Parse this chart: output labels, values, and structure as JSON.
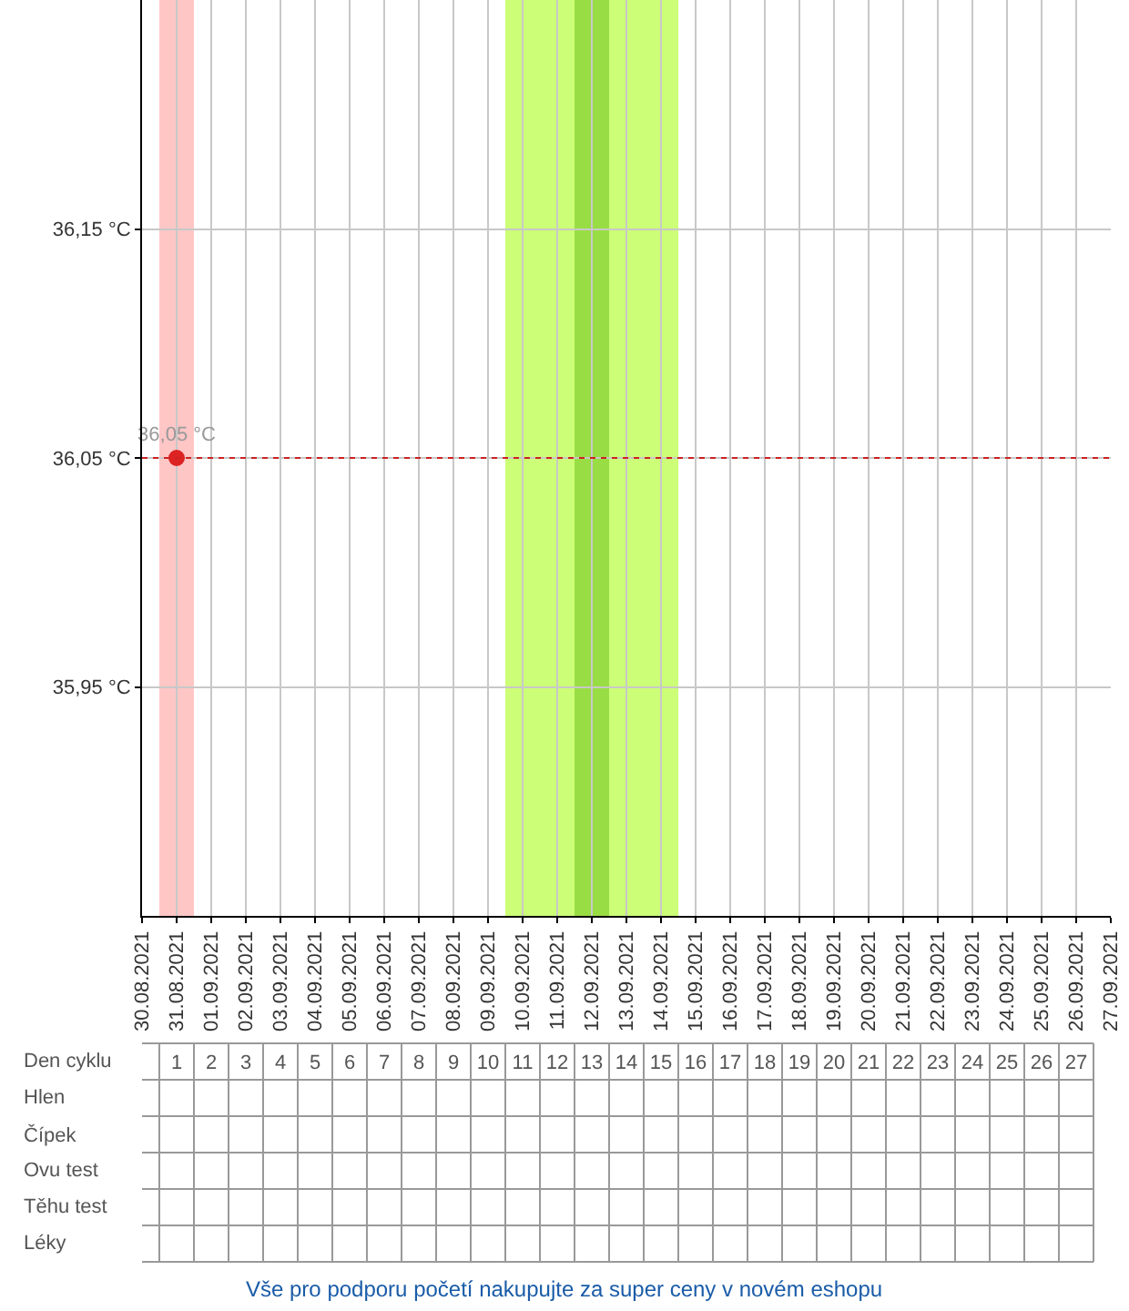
{
  "chart_data": {
    "type": "line",
    "x": [
      "2021-08-31"
    ],
    "series": [
      {
        "color": "#dd2222",
        "values": [
          36.05
        ],
        "value_labels": [
          "36,05 °C"
        ]
      }
    ],
    "marker": "circle",
    "xlim": [
      "2021-08-30",
      "2021-09-27"
    ],
    "xticks": [
      {
        "value": "2021-08-30",
        "label": "30.08.2021"
      },
      {
        "value": "2021-08-31",
        "label": "31.08.2021"
      },
      {
        "value": "2021-09-01",
        "label": "01.09.2021"
      },
      {
        "value": "2021-09-02",
        "label": "02.09.2021"
      },
      {
        "value": "2021-09-03",
        "label": "03.09.2021"
      },
      {
        "value": "2021-09-04",
        "label": "04.09.2021"
      },
      {
        "value": "2021-09-05",
        "label": "05.09.2021"
      },
      {
        "value": "2021-09-06",
        "label": "06.09.2021"
      },
      {
        "value": "2021-09-07",
        "label": "07.09.2021"
      },
      {
        "value": "2021-09-08",
        "label": "08.09.2021"
      },
      {
        "value": "2021-09-09",
        "label": "09.09.2021"
      },
      {
        "value": "2021-09-10",
        "label": "10.09.2021"
      },
      {
        "value": "2021-09-11",
        "label": "11.09.2021"
      },
      {
        "value": "2021-09-12",
        "label": "12.09.2021"
      },
      {
        "value": "2021-09-13",
        "label": "13.09.2021"
      },
      {
        "value": "2021-09-14",
        "label": "14.09.2021"
      },
      {
        "value": "2021-09-15",
        "label": "15.09.2021"
      },
      {
        "value": "2021-09-16",
        "label": "16.09.2021"
      },
      {
        "value": "2021-09-17",
        "label": "17.09.2021"
      },
      {
        "value": "2021-09-18",
        "label": "18.09.2021"
      },
      {
        "value": "2021-09-19",
        "label": "19.09.2021"
      },
      {
        "value": "2021-09-20",
        "label": "20.09.2021"
      },
      {
        "value": "2021-09-21",
        "label": "21.09.2021"
      },
      {
        "value": "2021-09-22",
        "label": "22.09.2021"
      },
      {
        "value": "2021-09-23",
        "label": "23.09.2021"
      },
      {
        "value": "2021-09-24",
        "label": "24.09.2021"
      },
      {
        "value": "2021-09-25",
        "label": "25.09.2021"
      },
      {
        "value": "2021-09-26",
        "label": "26.09.2021"
      },
      {
        "value": "2021-09-27",
        "label": "27.09.2021"
      }
    ],
    "ylim": [
      35.85,
      36.25
    ],
    "yticks": [
      {
        "value": 35.95,
        "label": "35,95 °C"
      },
      {
        "value": 36.05,
        "label": "36,05 °C"
      },
      {
        "value": 36.15,
        "label": "36,15 °C"
      }
    ],
    "x2lim": [
      0,
      28
    ],
    "x2ticks": [
      1,
      2,
      3,
      4,
      5,
      6,
      7,
      8,
      9,
      10,
      11,
      12,
      13,
      14,
      15,
      16,
      17,
      18,
      19,
      20,
      21,
      22,
      23,
      24,
      25,
      26,
      27
    ],
    "x2label": "Den cyklu",
    "bands": [
      {
        "axis": "x",
        "from": "2021-08-30T12:00",
        "to": "2021-08-31T12:00",
        "color": "#ffc6c6"
      },
      {
        "axis": "x",
        "from": "2021-09-09T12:00",
        "to": "2021-09-14T12:00",
        "color": "#ccff77"
      },
      {
        "axis": "x",
        "from": "2021-09-11T12:00",
        "to": "2021-09-12T12:00",
        "color": "#99dd44"
      }
    ],
    "ref_lines": [
      {
        "axis": "y",
        "value": 36.05,
        "color": "#cc2222",
        "line_style": "dotted"
      }
    ],
    "grid": true,
    "annotations": [
      "Hlen",
      "Čípek",
      "Ovu test",
      "Těhu test",
      "Léky",
      "Vše pro podporu početí nakupujte za super ceny v novém eshopu"
    ]
  }
}
